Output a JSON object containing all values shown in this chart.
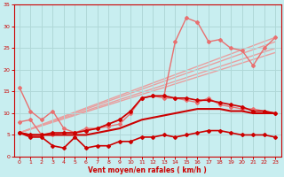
{
  "background_color": "#c8eef0",
  "grid_color": "#b0d8d8",
  "xlabel": "Vent moyen/en rafales ( km/h )",
  "xlabel_color": "#cc0000",
  "tick_color": "#cc0000",
  "xlim": [
    -0.5,
    23.5
  ],
  "ylim": [
    0,
    35
  ],
  "xticks": [
    0,
    1,
    2,
    3,
    4,
    5,
    6,
    7,
    8,
    9,
    10,
    11,
    12,
    13,
    14,
    15,
    16,
    17,
    18,
    19,
    20,
    21,
    22,
    23
  ],
  "yticks": [
    0,
    5,
    10,
    15,
    20,
    25,
    30,
    35
  ],
  "lines": [
    {
      "x": [
        0,
        1,
        2,
        3,
        4,
        5,
        6,
        7,
        8,
        9,
        10,
        11,
        12,
        13,
        14,
        15,
        16,
        17,
        18,
        19,
        20,
        21,
        22,
        23
      ],
      "y": [
        5.5,
        4.5,
        4.5,
        2.5,
        2.0,
        4.5,
        2.0,
        2.5,
        2.5,
        3.5,
        3.5,
        4.5,
        4.5,
        5.0,
        4.5,
        5.0,
        5.5,
        6.0,
        6.0,
        5.5,
        5.0,
        5.0,
        5.0,
        4.5
      ],
      "color": "#cc0000",
      "lw": 1.2,
      "marker": "D",
      "ms": 2.0,
      "zorder": 5
    },
    {
      "x": [
        0,
        1,
        2,
        3,
        4,
        5,
        6,
        7,
        8,
        9,
        10,
        11,
        12,
        13,
        14,
        15,
        16,
        17,
        18,
        19,
        20,
        21,
        22,
        23
      ],
      "y": [
        5.5,
        5.0,
        5.0,
        5.0,
        5.0,
        5.0,
        5.0,
        5.5,
        6.0,
        6.5,
        7.5,
        8.5,
        9.0,
        9.5,
        10.0,
        10.5,
        11.0,
        11.0,
        11.0,
        10.5,
        10.5,
        10.0,
        10.0,
        10.0
      ],
      "color": "#cc0000",
      "lw": 1.5,
      "marker": null,
      "ms": 0,
      "zorder": 4
    },
    {
      "x": [
        0,
        1,
        2,
        3,
        4,
        5,
        6,
        7,
        8,
        9,
        10,
        11,
        12,
        13,
        14,
        15,
        16,
        17,
        18,
        19,
        20,
        21,
        22,
        23
      ],
      "y": [
        5.5,
        5.0,
        5.0,
        5.5,
        5.5,
        5.5,
        6.0,
        6.5,
        7.5,
        8.5,
        10.5,
        13.5,
        14.0,
        14.0,
        13.5,
        13.5,
        13.0,
        13.0,
        12.5,
        12.0,
        11.5,
        10.5,
        10.5,
        10.0
      ],
      "color": "#cc0000",
      "lw": 1.2,
      "marker": "D",
      "ms": 2.0,
      "zorder": 5
    },
    {
      "x": [
        0,
        1,
        2,
        3,
        4,
        5,
        6,
        7,
        8,
        9,
        10,
        11,
        12,
        13,
        14,
        15,
        16,
        17,
        18,
        19,
        20,
        21,
        22,
        23
      ],
      "y": [
        16.0,
        10.5,
        8.5,
        10.5,
        6.5,
        5.5,
        6.5,
        6.5,
        7.0,
        7.5,
        10.0,
        13.5,
        14.0,
        13.5,
        13.5,
        13.0,
        12.5,
        13.5,
        12.0,
        11.5,
        11.0,
        11.0,
        10.5,
        10.0
      ],
      "color": "#e87070",
      "lw": 1.0,
      "marker": "D",
      "ms": 2.0,
      "zorder": 3
    },
    {
      "x": [
        0,
        1,
        2,
        3,
        4,
        5,
        6,
        7,
        8,
        9,
        10,
        11,
        12,
        13,
        14,
        15,
        16,
        17,
        18,
        19,
        20,
        21,
        22,
        23
      ],
      "y": [
        8.0,
        8.5,
        5.0,
        5.0,
        5.5,
        5.5,
        6.0,
        6.5,
        7.5,
        8.5,
        10.5,
        13.5,
        14.0,
        14.0,
        26.5,
        32.0,
        31.0,
        26.5,
        27.0,
        25.0,
        24.5,
        21.0,
        25.0,
        27.5
      ],
      "color": "#e87070",
      "lw": 1.0,
      "marker": "D",
      "ms": 2.0,
      "zorder": 2
    },
    {
      "x": [
        0,
        23
      ],
      "y": [
        5.5,
        25.0
      ],
      "color": "#e8a0a0",
      "lw": 1.0,
      "marker": null,
      "ms": 0,
      "zorder": 1
    },
    {
      "x": [
        0,
        23
      ],
      "y": [
        5.5,
        26.5
      ],
      "color": "#e8a0a0",
      "lw": 1.0,
      "marker": null,
      "ms": 0,
      "zorder": 1
    },
    {
      "x": [
        0,
        23
      ],
      "y": [
        5.5,
        27.5
      ],
      "color": "#e8a0a0",
      "lw": 1.0,
      "marker": null,
      "ms": 0,
      "zorder": 1
    },
    {
      "x": [
        0,
        23
      ],
      "y": [
        5.5,
        24.0
      ],
      "color": "#e8a0a0",
      "lw": 1.0,
      "marker": null,
      "ms": 0,
      "zorder": 1
    }
  ]
}
